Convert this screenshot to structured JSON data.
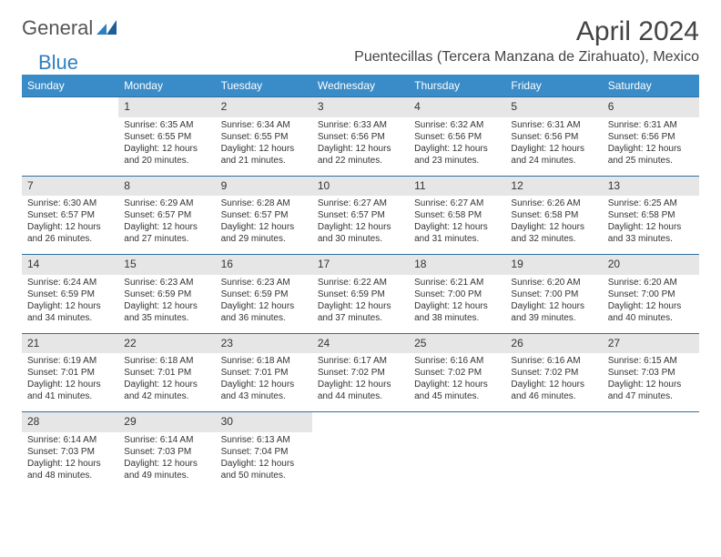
{
  "logo": {
    "part1": "General",
    "part2": "Blue"
  },
  "title": "April 2024",
  "subtitle": "Puentecillas (Tercera Manzana de Zirahuato), Mexico",
  "colors": {
    "header_bg": "#3a8cc8",
    "header_text": "#ffffff",
    "daynum_bg": "#e6e6e6",
    "row_border": "#2f6fa0",
    "text": "#333333",
    "logo_gray": "#555555",
    "logo_blue": "#2f7fbf",
    "page_bg": "#ffffff"
  },
  "weekdays": [
    "Sunday",
    "Monday",
    "Tuesday",
    "Wednesday",
    "Thursday",
    "Friday",
    "Saturday"
  ],
  "weeks": [
    {
      "nums": [
        "",
        "1",
        "2",
        "3",
        "4",
        "5",
        "6"
      ],
      "cells": [
        {},
        {
          "sunrise": "Sunrise: 6:35 AM",
          "sunset": "Sunset: 6:55 PM",
          "day1": "Daylight: 12 hours",
          "day2": "and 20 minutes."
        },
        {
          "sunrise": "Sunrise: 6:34 AM",
          "sunset": "Sunset: 6:55 PM",
          "day1": "Daylight: 12 hours",
          "day2": "and 21 minutes."
        },
        {
          "sunrise": "Sunrise: 6:33 AM",
          "sunset": "Sunset: 6:56 PM",
          "day1": "Daylight: 12 hours",
          "day2": "and 22 minutes."
        },
        {
          "sunrise": "Sunrise: 6:32 AM",
          "sunset": "Sunset: 6:56 PM",
          "day1": "Daylight: 12 hours",
          "day2": "and 23 minutes."
        },
        {
          "sunrise": "Sunrise: 6:31 AM",
          "sunset": "Sunset: 6:56 PM",
          "day1": "Daylight: 12 hours",
          "day2": "and 24 minutes."
        },
        {
          "sunrise": "Sunrise: 6:31 AM",
          "sunset": "Sunset: 6:56 PM",
          "day1": "Daylight: 12 hours",
          "day2": "and 25 minutes."
        }
      ]
    },
    {
      "nums": [
        "7",
        "8",
        "9",
        "10",
        "11",
        "12",
        "13"
      ],
      "cells": [
        {
          "sunrise": "Sunrise: 6:30 AM",
          "sunset": "Sunset: 6:57 PM",
          "day1": "Daylight: 12 hours",
          "day2": "and 26 minutes."
        },
        {
          "sunrise": "Sunrise: 6:29 AM",
          "sunset": "Sunset: 6:57 PM",
          "day1": "Daylight: 12 hours",
          "day2": "and 27 minutes."
        },
        {
          "sunrise": "Sunrise: 6:28 AM",
          "sunset": "Sunset: 6:57 PM",
          "day1": "Daylight: 12 hours",
          "day2": "and 29 minutes."
        },
        {
          "sunrise": "Sunrise: 6:27 AM",
          "sunset": "Sunset: 6:57 PM",
          "day1": "Daylight: 12 hours",
          "day2": "and 30 minutes."
        },
        {
          "sunrise": "Sunrise: 6:27 AM",
          "sunset": "Sunset: 6:58 PM",
          "day1": "Daylight: 12 hours",
          "day2": "and 31 minutes."
        },
        {
          "sunrise": "Sunrise: 6:26 AM",
          "sunset": "Sunset: 6:58 PM",
          "day1": "Daylight: 12 hours",
          "day2": "and 32 minutes."
        },
        {
          "sunrise": "Sunrise: 6:25 AM",
          "sunset": "Sunset: 6:58 PM",
          "day1": "Daylight: 12 hours",
          "day2": "and 33 minutes."
        }
      ]
    },
    {
      "nums": [
        "14",
        "15",
        "16",
        "17",
        "18",
        "19",
        "20"
      ],
      "cells": [
        {
          "sunrise": "Sunrise: 6:24 AM",
          "sunset": "Sunset: 6:59 PM",
          "day1": "Daylight: 12 hours",
          "day2": "and 34 minutes."
        },
        {
          "sunrise": "Sunrise: 6:23 AM",
          "sunset": "Sunset: 6:59 PM",
          "day1": "Daylight: 12 hours",
          "day2": "and 35 minutes."
        },
        {
          "sunrise": "Sunrise: 6:23 AM",
          "sunset": "Sunset: 6:59 PM",
          "day1": "Daylight: 12 hours",
          "day2": "and 36 minutes."
        },
        {
          "sunrise": "Sunrise: 6:22 AM",
          "sunset": "Sunset: 6:59 PM",
          "day1": "Daylight: 12 hours",
          "day2": "and 37 minutes."
        },
        {
          "sunrise": "Sunrise: 6:21 AM",
          "sunset": "Sunset: 7:00 PM",
          "day1": "Daylight: 12 hours",
          "day2": "and 38 minutes."
        },
        {
          "sunrise": "Sunrise: 6:20 AM",
          "sunset": "Sunset: 7:00 PM",
          "day1": "Daylight: 12 hours",
          "day2": "and 39 minutes."
        },
        {
          "sunrise": "Sunrise: 6:20 AM",
          "sunset": "Sunset: 7:00 PM",
          "day1": "Daylight: 12 hours",
          "day2": "and 40 minutes."
        }
      ]
    },
    {
      "nums": [
        "21",
        "22",
        "23",
        "24",
        "25",
        "26",
        "27"
      ],
      "cells": [
        {
          "sunrise": "Sunrise: 6:19 AM",
          "sunset": "Sunset: 7:01 PM",
          "day1": "Daylight: 12 hours",
          "day2": "and 41 minutes."
        },
        {
          "sunrise": "Sunrise: 6:18 AM",
          "sunset": "Sunset: 7:01 PM",
          "day1": "Daylight: 12 hours",
          "day2": "and 42 minutes."
        },
        {
          "sunrise": "Sunrise: 6:18 AM",
          "sunset": "Sunset: 7:01 PM",
          "day1": "Daylight: 12 hours",
          "day2": "and 43 minutes."
        },
        {
          "sunrise": "Sunrise: 6:17 AM",
          "sunset": "Sunset: 7:02 PM",
          "day1": "Daylight: 12 hours",
          "day2": "and 44 minutes."
        },
        {
          "sunrise": "Sunrise: 6:16 AM",
          "sunset": "Sunset: 7:02 PM",
          "day1": "Daylight: 12 hours",
          "day2": "and 45 minutes."
        },
        {
          "sunrise": "Sunrise: 6:16 AM",
          "sunset": "Sunset: 7:02 PM",
          "day1": "Daylight: 12 hours",
          "day2": "and 46 minutes."
        },
        {
          "sunrise": "Sunrise: 6:15 AM",
          "sunset": "Sunset: 7:03 PM",
          "day1": "Daylight: 12 hours",
          "day2": "and 47 minutes."
        }
      ]
    },
    {
      "nums": [
        "28",
        "29",
        "30",
        "",
        "",
        "",
        ""
      ],
      "cells": [
        {
          "sunrise": "Sunrise: 6:14 AM",
          "sunset": "Sunset: 7:03 PM",
          "day1": "Daylight: 12 hours",
          "day2": "and 48 minutes."
        },
        {
          "sunrise": "Sunrise: 6:14 AM",
          "sunset": "Sunset: 7:03 PM",
          "day1": "Daylight: 12 hours",
          "day2": "and 49 minutes."
        },
        {
          "sunrise": "Sunrise: 6:13 AM",
          "sunset": "Sunset: 7:04 PM",
          "day1": "Daylight: 12 hours",
          "day2": "and 50 minutes."
        },
        {},
        {},
        {},
        {}
      ]
    }
  ]
}
